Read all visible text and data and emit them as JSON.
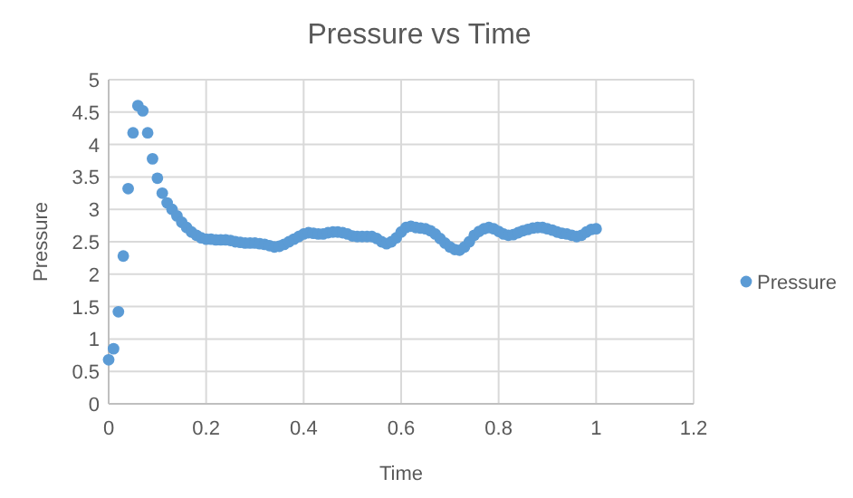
{
  "chart_data": {
    "type": "scatter",
    "title": "Pressure vs Time",
    "xlabel": "Time",
    "ylabel": "Pressure",
    "xlim": [
      0,
      1.2
    ],
    "xticks": [
      0,
      0.2,
      0.4,
      0.6,
      0.8,
      1,
      1.2
    ],
    "ylim": [
      0,
      5
    ],
    "yticks": [
      0,
      0.5,
      1,
      1.5,
      2,
      2.5,
      3,
      3.5,
      4,
      4.5,
      5
    ],
    "grid": true,
    "legend": "right",
    "marker": "circle",
    "series": [
      {
        "name": "Pressure",
        "color": "#5b9bd5",
        "x": [
          0,
          0.01,
          0.02,
          0.03,
          0.04,
          0.05,
          0.06,
          0.07,
          0.08,
          0.09,
          0.1,
          0.11,
          0.12,
          0.13,
          0.14,
          0.15,
          0.16,
          0.17,
          0.18,
          0.19,
          0.2,
          0.21,
          0.22,
          0.23,
          0.24,
          0.25,
          0.26,
          0.27,
          0.28,
          0.29,
          0.3,
          0.31,
          0.32,
          0.33,
          0.34,
          0.35,
          0.36,
          0.37,
          0.38,
          0.39,
          0.4,
          0.41,
          0.42,
          0.43,
          0.44,
          0.45,
          0.46,
          0.47,
          0.48,
          0.49,
          0.5,
          0.51,
          0.52,
          0.53,
          0.54,
          0.55,
          0.56,
          0.57,
          0.58,
          0.59,
          0.6,
          0.61,
          0.62,
          0.63,
          0.64,
          0.65,
          0.66,
          0.67,
          0.68,
          0.69,
          0.7,
          0.71,
          0.72,
          0.73,
          0.74,
          0.75,
          0.76,
          0.77,
          0.78,
          0.79,
          0.8,
          0.81,
          0.82,
          0.83,
          0.84,
          0.85,
          0.86,
          0.87,
          0.88,
          0.89,
          0.9,
          0.91,
          0.92,
          0.93,
          0.94,
          0.95,
          0.96,
          0.97,
          0.98,
          0.99,
          1
        ],
        "values": [
          0.68,
          0.85,
          1.42,
          2.28,
          3.32,
          4.18,
          4.6,
          4.52,
          4.18,
          3.78,
          3.48,
          3.25,
          3.1,
          3.0,
          2.9,
          2.8,
          2.72,
          2.65,
          2.6,
          2.56,
          2.54,
          2.54,
          2.53,
          2.53,
          2.53,
          2.52,
          2.5,
          2.49,
          2.48,
          2.48,
          2.48,
          2.47,
          2.46,
          2.44,
          2.42,
          2.43,
          2.46,
          2.5,
          2.54,
          2.58,
          2.62,
          2.64,
          2.63,
          2.62,
          2.62,
          2.64,
          2.65,
          2.65,
          2.64,
          2.62,
          2.59,
          2.58,
          2.58,
          2.58,
          2.58,
          2.55,
          2.5,
          2.47,
          2.5,
          2.56,
          2.65,
          2.72,
          2.74,
          2.72,
          2.71,
          2.7,
          2.67,
          2.62,
          2.55,
          2.48,
          2.42,
          2.38,
          2.37,
          2.42,
          2.5,
          2.6,
          2.66,
          2.7,
          2.72,
          2.7,
          2.66,
          2.62,
          2.6,
          2.61,
          2.64,
          2.67,
          2.69,
          2.71,
          2.72,
          2.72,
          2.7,
          2.68,
          2.65,
          2.63,
          2.62,
          2.6,
          2.58,
          2.6,
          2.65,
          2.69,
          2.7
        ]
      }
    ]
  }
}
